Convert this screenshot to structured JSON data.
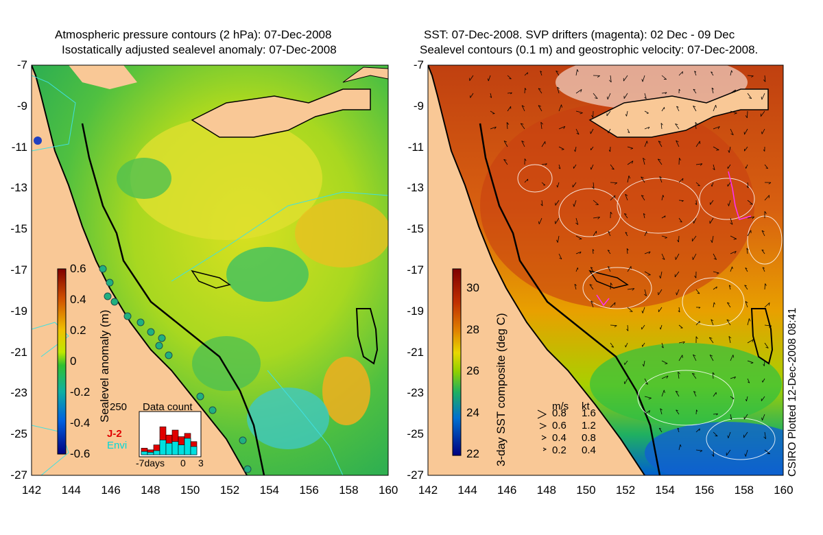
{
  "left_panel": {
    "title_line1": "Atmospheric pressure contours (2 hPa): 07-Dec-2008",
    "title_line2": "Isostatically adjusted sealevel anomaly: 07-Dec-2008",
    "y_ticks": [
      "-7",
      "-9",
      "-11",
      "-13",
      "-15",
      "-17",
      "-19",
      "-21",
      "-23",
      "-25",
      "-27"
    ],
    "x_ticks": [
      "142",
      "144",
      "146",
      "148",
      "150",
      "152",
      "154",
      "156",
      "158",
      "160"
    ],
    "colorbar": {
      "label": "Sealevel anomaly (m)",
      "ticks": [
        "0.6",
        "0.4",
        "0.2",
        "0",
        "-0.2",
        "-0.4",
        "-0.6"
      ],
      "colors": [
        "#7f0000",
        "#c03000",
        "#e07000",
        "#f0b000",
        "#e8e800",
        "#a0e000",
        "#30c030",
        "#10b080",
        "#00a0c0",
        "#0070e0",
        "#0030c0",
        "#000080"
      ]
    },
    "data_count": {
      "title": "Data count",
      "max_label": "250",
      "series_j2": "J-2",
      "series_envi": "Envi",
      "xlabel_left": "-7days",
      "xlabel_mid": "0",
      "xlabel_right": "3",
      "j2_values": [
        40,
        30,
        60,
        170,
        120,
        150,
        110,
        130,
        80
      ],
      "envi_values": [
        20,
        15,
        25,
        90,
        70,
        80,
        60,
        100,
        50
      ]
    }
  },
  "right_panel": {
    "title_line1": "SST: 07-Dec-2008. SVP drifters (magenta): 02 Dec - 09 Dec",
    "title_line2": "Sealevel contours (0.1 m) and geostrophic velocity: 07-Dec-2008.",
    "y_ticks": [
      "-7",
      "-9",
      "-11",
      "-13",
      "-15",
      "-17",
      "-19",
      "-21",
      "-23",
      "-25",
      "-27"
    ],
    "x_ticks": [
      "142",
      "144",
      "146",
      "148",
      "150",
      "152",
      "154",
      "156",
      "158",
      "160"
    ],
    "colorbar": {
      "label": "3-day SST composite (deg C)",
      "ticks": [
        "30",
        "28",
        "26",
        "24",
        "22"
      ],
      "colors": [
        "#7f0000",
        "#b02000",
        "#d04800",
        "#e07800",
        "#e8a800",
        "#e8e000",
        "#a0d800",
        "#40c040",
        "#10a890",
        "#0080d0",
        "#0040c0",
        "#000080"
      ]
    },
    "velocity_legend": {
      "unit_ms": "m/s",
      "unit_kt": "kt",
      "rows": [
        {
          "ms": "0.8",
          "kt": "1.6"
        },
        {
          "ms": "0.6",
          "kt": "1.2"
        },
        {
          "ms": "0.4",
          "kt": "0.8"
        },
        {
          "ms": "0.2",
          "kt": "0.4"
        }
      ]
    }
  },
  "credit": "CSIRO Plotted 12-Dec-2008 08:41",
  "colors": {
    "land": "#f9c896",
    "coast": "#000000",
    "contour_cyan": "#40e0e0",
    "contour_white": "#ffffff"
  }
}
